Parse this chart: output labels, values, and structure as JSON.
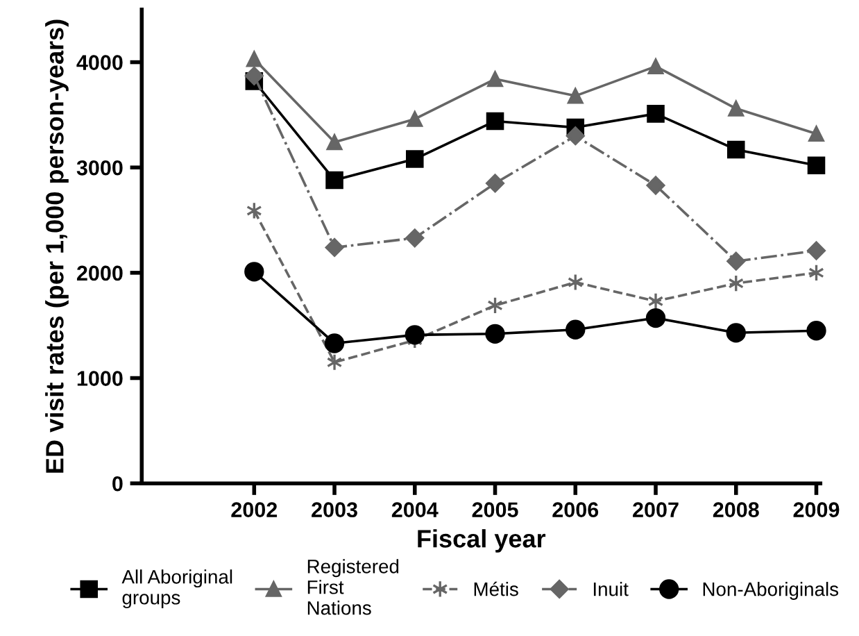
{
  "chart_data": {
    "type": "line",
    "xlabel": "Fiscal year",
    "ylabel": "ED visit rates (per 1,000 person-years)",
    "x": [
      2002,
      2003,
      2004,
      2005,
      2006,
      2007,
      2008,
      2009
    ],
    "xlim": [
      2000.6,
      2009.05
    ],
    "xticks": [
      2002,
      2003,
      2004,
      2005,
      2006,
      2007,
      2008,
      2009
    ],
    "ylim": [
      0,
      4500
    ],
    "yticks": [
      0,
      1000,
      2000,
      3000,
      4000
    ],
    "grid": false,
    "legend": "bottom",
    "series": [
      {
        "name": "All Aboriginal\ngroups",
        "color": "#000000",
        "marker": "square",
        "line_style": "solid",
        "values": [
          3820,
          2880,
          3080,
          3440,
          3380,
          3510,
          3170,
          3020
        ]
      },
      {
        "name": "Registered\nFirst\nNations",
        "color": "#666666",
        "marker": "triangle",
        "line_style": "solid",
        "values": [
          4030,
          3240,
          3460,
          3840,
          3680,
          3960,
          3560,
          3320
        ]
      },
      {
        "name": "Métis",
        "color": "#666666",
        "marker": "cross",
        "line_style": "dashed",
        "values": [
          2590,
          1150,
          1360,
          1690,
          1910,
          1730,
          1900,
          2000
        ]
      },
      {
        "name": "Inuit",
        "color": "#666666",
        "marker": "diamond",
        "line_style": "dashdot",
        "values": [
          3870,
          2240,
          2330,
          2850,
          3300,
          2830,
          2110,
          2210
        ]
      },
      {
        "name": "Non-Aboriginals",
        "color": "#000000",
        "marker": "circle",
        "line_style": "solid",
        "values": [
          2010,
          1330,
          1410,
          1420,
          1460,
          1570,
          1430,
          1450
        ]
      }
    ]
  }
}
